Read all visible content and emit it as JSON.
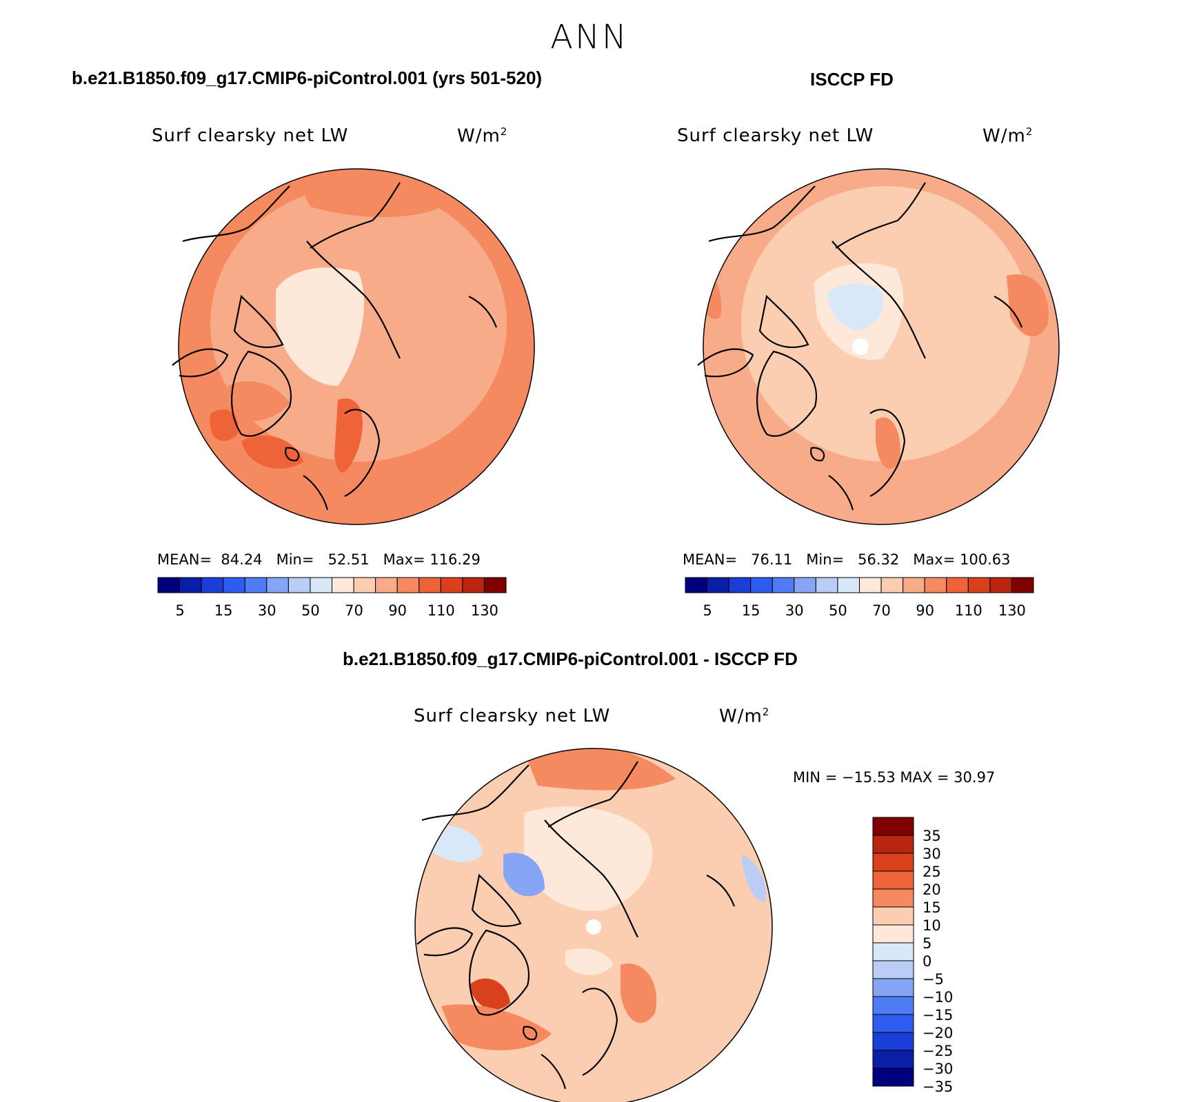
{
  "figure": {
    "title": "ANN"
  },
  "panels": [
    {
      "id": "model",
      "title": "b.e21.B1850.f09_g17.CMIP6-piControl.001 (yrs 501-520)",
      "variable": "Surf clearsky net LW",
      "units": "W/m",
      "units_exp": "2",
      "stats": {
        "mean_label": "MEAN=",
        "mean": "84.24",
        "min_label": "Min=",
        "min": "52.51",
        "max_label": "Max=",
        "max": "116.29"
      }
    },
    {
      "id": "obs",
      "title": "ISCCP FD",
      "variable": "Surf clearsky net LW",
      "units": "W/m",
      "units_exp": "2",
      "stats": {
        "mean_label": "MEAN=",
        "mean": "76.11",
        "min_label": "Min=",
        "min": "56.32",
        "max_label": "Max=",
        "max": "100.63"
      }
    },
    {
      "id": "diff",
      "title": "b.e21.B1850.f09_g17.CMIP6-piControl.001 - ISCCP FD",
      "variable": "Surf clearsky net LW",
      "units": "W/m",
      "units_exp": "2",
      "stats": {
        "text": "MIN = −15.53 MAX =   30.97"
      }
    }
  ],
  "abs_colorbar": {
    "colors": [
      "#00007f",
      "#0a1fa8",
      "#1b3ed6",
      "#2f5cf0",
      "#4f7cf5",
      "#86a6f5",
      "#b9cdf7",
      "#d8e8f8",
      "#fde8da",
      "#fbcdb1",
      "#f7ab88",
      "#f5895f",
      "#ef6338",
      "#d9401c",
      "#b82510",
      "#7f0000"
    ],
    "labels": [
      "5",
      "15",
      "30",
      "50",
      "70",
      "90",
      "110",
      "130"
    ]
  },
  "diff_colorbar": {
    "colors": [
      "#7f0000",
      "#b82510",
      "#d9401c",
      "#ef6338",
      "#f5895f",
      "#fbcdb1",
      "#fde8da",
      "#d8e8f8",
      "#b9cdf7",
      "#86a6f5",
      "#4f7cf5",
      "#2f5cf0",
      "#1b3ed6",
      "#0a1fa8",
      "#00007f"
    ],
    "labels": [
      "35",
      "30",
      "25",
      "20",
      "15",
      "10",
      "5",
      "0",
      "−5",
      "−10",
      "−15",
      "−20",
      "−25",
      "−30",
      "−35"
    ]
  }
}
